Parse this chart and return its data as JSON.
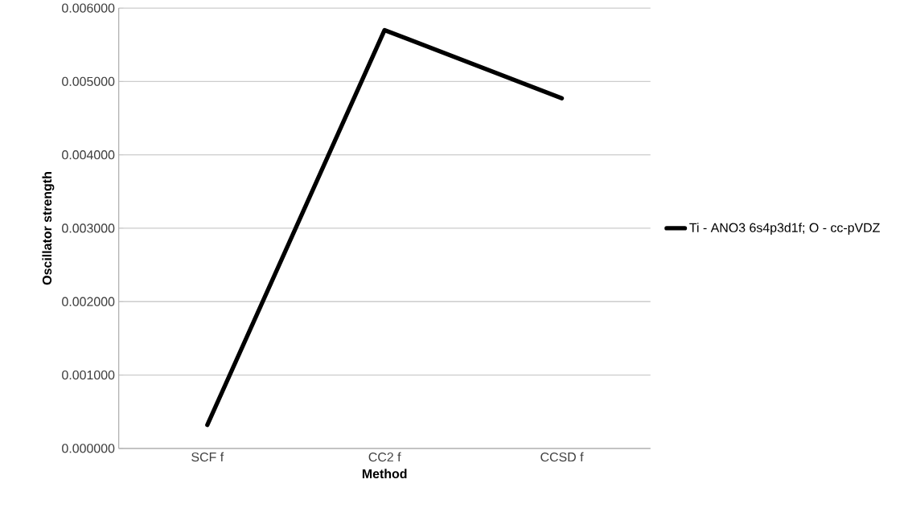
{
  "chart_data": {
    "type": "line",
    "xlabel": "Method",
    "ylabel": "Oscillator strength",
    "categories": [
      "SCF f",
      "CC2 f",
      "CCSD f"
    ],
    "series": [
      {
        "name": "Ti - ANO3 6s4p3d1f; O - cc-pVDZ",
        "color": "#000000",
        "values": [
          0.00032,
          0.0057,
          0.00477
        ]
      }
    ],
    "ylim": [
      0,
      0.006
    ],
    "yticks": [
      {
        "value": 0,
        "label": "0.000000"
      },
      {
        "value": 0.001,
        "label": "0.001000"
      },
      {
        "value": 0.002,
        "label": "0.002000"
      },
      {
        "value": 0.003,
        "label": "0.003000"
      },
      {
        "value": 0.004,
        "label": "0.004000"
      },
      {
        "value": 0.005,
        "label": "0.005000"
      },
      {
        "value": 0.006,
        "label": "0.006000"
      }
    ],
    "grid": "y",
    "legend": "right",
    "marker": "none",
    "line_style": "solid"
  }
}
